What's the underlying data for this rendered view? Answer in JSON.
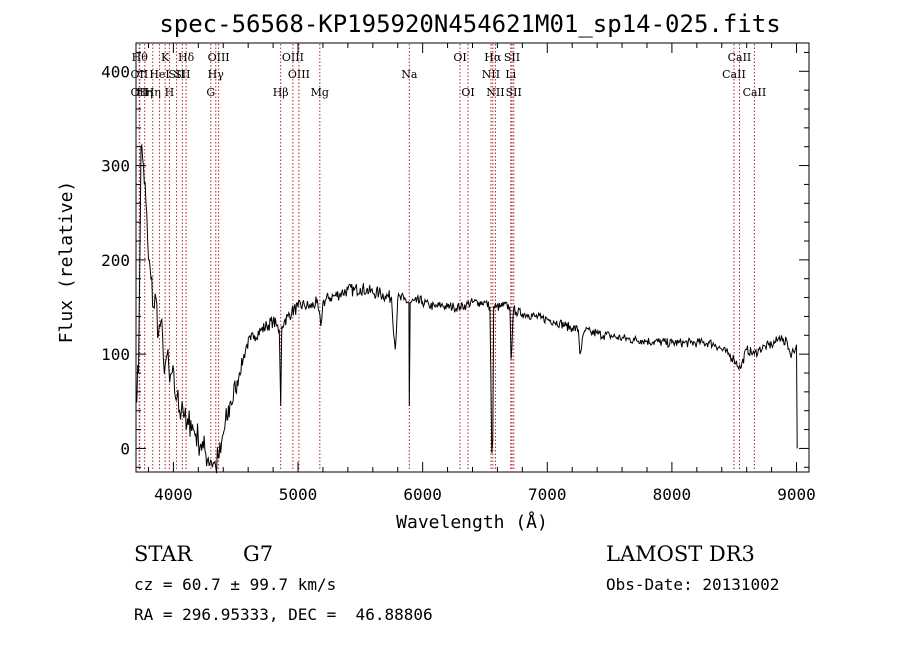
{
  "chart_data": {
    "type": "line",
    "title": "spec-56568-KP195920N454621M01_sp14-025.fits",
    "xlabel": "Wavelength (Å)",
    "ylabel": "Flux (relative)",
    "xlim": [
      3700,
      9100
    ],
    "ylim": [
      -25,
      430
    ],
    "xticks": [
      4000,
      5000,
      6000,
      7000,
      8000,
      9000
    ],
    "yticks": [
      0,
      100,
      200,
      300,
      400
    ],
    "grid": false,
    "line_color": "#000000",
    "marker_color": "#b22222",
    "series": [
      {
        "x": [
          3700,
          3720,
          3740,
          3760,
          3780,
          3800,
          3820,
          3840,
          3860,
          3880,
          3900,
          3920,
          3935,
          3950,
          3970,
          3990,
          4010,
          4030,
          4050,
          4070,
          4090,
          4102,
          4120,
          4140,
          4160,
          4180,
          4200,
          4220,
          4240,
          4260,
          4280,
          4300,
          4320,
          4340,
          4360,
          4380,
          4400,
          4430,
          4460,
          4500,
          4530,
          4560,
          4590,
          4620,
          4650,
          4700,
          4750,
          4800,
          4830,
          4850,
          4861,
          4870,
          4890,
          4920,
          4950,
          5000,
          5050,
          5100,
          5150,
          5183,
          5200,
          5250,
          5300,
          5350,
          5400,
          5450,
          5500,
          5550,
          5600,
          5650,
          5700,
          5750,
          5780,
          5800,
          5850,
          5890,
          5893,
          5900,
          5950,
          6000,
          6050,
          6100,
          6150,
          6200,
          6250,
          6300,
          6350,
          6400,
          6450,
          6500,
          6540,
          6555,
          6563,
          6570,
          6590,
          6620,
          6650,
          6700,
          6710,
          6730,
          6750,
          6800,
          6850,
          6900,
          6950,
          7000,
          7050,
          7100,
          7150,
          7200,
          7250,
          7262,
          7300,
          7350,
          7400,
          7450,
          7500,
          7550,
          7600,
          7650,
          7700,
          7750,
          7800,
          7850,
          7900,
          7950,
          8000,
          8050,
          8100,
          8150,
          8200,
          8250,
          8300,
          8350,
          8400,
          8450,
          8498,
          8550,
          8600,
          8662,
          8700,
          8750,
          8800,
          8850,
          8880,
          8900,
          8920,
          8950,
          8990,
          9000,
          9005
        ],
        "y": [
          60,
          80,
          320,
          300,
          260,
          200,
          180,
          150,
          160,
          120,
          135,
          95,
          90,
          100,
          70,
          80,
          60,
          55,
          40,
          50,
          35,
          20,
          25,
          30,
          20,
          15,
          10,
          5,
          0,
          -5,
          -10,
          -12,
          -15,
          -20,
          -10,
          -5,
          15,
          30,
          50,
          60,
          80,
          95,
          110,
          115,
          120,
          125,
          130,
          135,
          130,
          125,
          45,
          130,
          135,
          140,
          145,
          150,
          152,
          150,
          155,
          130,
          155,
          160,
          162,
          165,
          168,
          168,
          170,
          168,
          165,
          165,
          162,
          160,
          105,
          158,
          158,
          155,
          45,
          155,
          155,
          155,
          152,
          150,
          152,
          150,
          150,
          150,
          152,
          155,
          155,
          155,
          150,
          -5,
          10,
          150,
          150,
          150,
          152,
          150,
          95,
          148,
          145,
          143,
          142,
          140,
          138,
          137,
          135,
          133,
          130,
          128,
          126,
          100,
          125,
          123,
          122,
          120,
          120,
          118,
          117,
          116,
          115,
          115,
          114,
          113,
          113,
          112,
          112,
          112,
          112,
          112,
          112,
          112,
          112,
          110,
          105,
          100,
          95,
          85,
          105,
          100,
          105,
          108,
          110,
          115,
          120,
          110,
          115,
          100,
          105,
          110,
          0
        ]
      }
    ],
    "lines": [
      {
        "x": 3730,
        "label": "Hθ",
        "row": 1
      },
      {
        "x": 3727,
        "label": "OII",
        "row": 2
      },
      {
        "x": 3727,
        "label": "OII",
        "row": 3
      },
      {
        "x": 3770,
        "label": "Hη",
        "row": 3
      },
      {
        "x": 3835,
        "label": "Hη",
        "row": 3
      },
      {
        "x": 3889,
        "label": "HeI",
        "row": 2
      },
      {
        "x": 3934,
        "label": "K",
        "row": 1
      },
      {
        "x": 3968,
        "label": "H",
        "row": 3
      },
      {
        "x": 4026,
        "label": "SII",
        "row": 2
      },
      {
        "x": 4102,
        "label": "Hδ",
        "row": 1
      },
      {
        "x": 4072,
        "label": "SII",
        "row": 2
      },
      {
        "x": 4300,
        "label": "G",
        "row": 3
      },
      {
        "x": 4340,
        "label": "Hγ",
        "row": 2
      },
      {
        "x": 4363,
        "label": "OIII",
        "row": 1
      },
      {
        "x": 4861,
        "label": "Hβ",
        "row": 3
      },
      {
        "x": 4959,
        "label": "OIII",
        "row": 1
      },
      {
        "x": 5007,
        "label": "OIII",
        "row": 2
      },
      {
        "x": 5175,
        "label": "Mg",
        "row": 3
      },
      {
        "x": 5893,
        "label": "Na",
        "row": 2
      },
      {
        "x": 6300,
        "label": "OI",
        "row": 1
      },
      {
        "x": 6364,
        "label": "OI",
        "row": 3
      },
      {
        "x": 6548,
        "label": "NII",
        "row": 2
      },
      {
        "x": 6563,
        "label": "Hα",
        "row": 1
      },
      {
        "x": 6584,
        "label": "NII",
        "row": 3
      },
      {
        "x": 6707,
        "label": "Li",
        "row": 2
      },
      {
        "x": 6717,
        "label": "SII",
        "row": 1
      },
      {
        "x": 6731,
        "label": "SII",
        "row": 3
      },
      {
        "x": 8498,
        "label": "CaII",
        "row": 2
      },
      {
        "x": 8542,
        "label": "CaII",
        "row": 1
      },
      {
        "x": 8662,
        "label": "CaII",
        "row": 3
      }
    ]
  },
  "info": {
    "object_class": "STAR",
    "subclass": "G7",
    "cz": "cz = 60.7 ± 99.7 km/s",
    "coords": "RA = 296.95333, DEC =  46.88806",
    "survey": "LAMOST DR3",
    "obs_date": "Obs-Date: 20131002"
  }
}
